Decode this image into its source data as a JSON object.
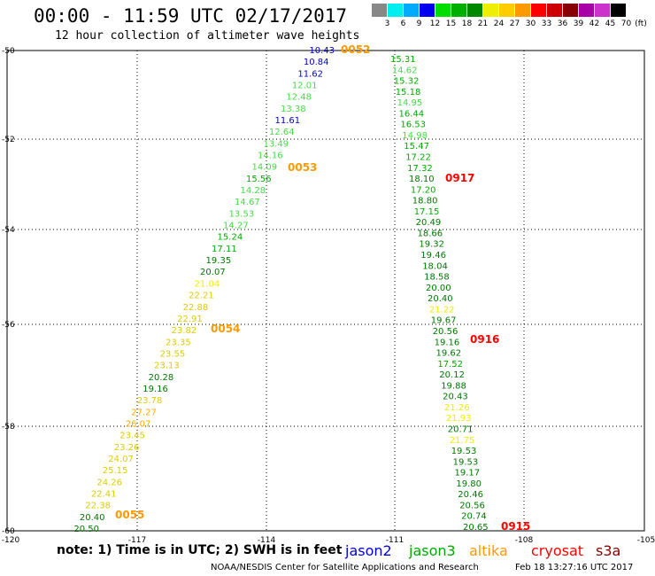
{
  "title": "00:00 - 11:59 UTC 02/17/2017",
  "subtitle": "12 hour collection of altimeter wave heights",
  "color_scale": {
    "unit": "(ft)",
    "labels": [
      "3",
      "6",
      "9",
      "12",
      "15",
      "18",
      "21",
      "24",
      "27",
      "30",
      "33",
      "36",
      "39",
      "42",
      "45",
      "70"
    ],
    "colors": [
      "#888888",
      "#00eeee",
      "#00aaff",
      "#0000ee",
      "#00dd00",
      "#00b000",
      "#008800",
      "#eeee00",
      "#ffcc00",
      "#ff9900",
      "#ff0000",
      "#cc0000",
      "#880000",
      "#aa00aa",
      "#cc33cc",
      "#000000"
    ]
  },
  "axes": {
    "x_ticks": [
      "-120",
      "-117",
      "-114",
      "-111",
      "-108",
      "-105"
    ],
    "y_ticks": [
      "-50",
      "-52",
      "-54",
      "-56",
      "-58",
      "-60"
    ]
  },
  "passes": [
    {
      "label": "0052",
      "color": "#ff9900"
    },
    {
      "label": "0053",
      "color": "#ff9900"
    },
    {
      "label": "0054",
      "color": "#ff9900"
    },
    {
      "label": "0055",
      "color": "#ff9900"
    },
    {
      "label": "0917",
      "color": "#ff0000"
    },
    {
      "label": "0916",
      "color": "#ff0000"
    },
    {
      "label": "0915",
      "color": "#ff0000"
    }
  ],
  "track_west": [
    {
      "v": "10.43",
      "c": "#0000cc"
    },
    {
      "v": "10.84",
      "c": "#0000cc"
    },
    {
      "v": "11.62",
      "c": "#0000cc"
    },
    {
      "v": "12.01",
      "c": "#44dd44"
    },
    {
      "v": "12.48",
      "c": "#44dd44"
    },
    {
      "v": "13.38",
      "c": "#44dd44"
    },
    {
      "v": "11.61",
      "c": "#0000cc"
    },
    {
      "v": "12.64",
      "c": "#44dd44"
    },
    {
      "v": "13.49",
      "c": "#44dd44"
    },
    {
      "v": "14.16",
      "c": "#44dd44"
    },
    {
      "v": "14.09",
      "c": "#44dd44"
    },
    {
      "v": "15.56",
      "c": "#00aa00"
    },
    {
      "v": "14.28",
      "c": "#44dd44"
    },
    {
      "v": "14.67",
      "c": "#44dd44"
    },
    {
      "v": "13.53",
      "c": "#44dd44"
    },
    {
      "v": "14.27",
      "c": "#44dd44"
    },
    {
      "v": "15.24",
      "c": "#00aa00"
    },
    {
      "v": "17.11",
      "c": "#00aa00"
    },
    {
      "v": "19.35",
      "c": "#007700"
    },
    {
      "v": "20.07",
      "c": "#007700"
    },
    {
      "v": "21.04",
      "c": "#eeee00"
    },
    {
      "v": "22.21",
      "c": "#ddcc00"
    },
    {
      "v": "22.88",
      "c": "#ddcc00"
    },
    {
      "v": "22.91",
      "c": "#ddcc00"
    },
    {
      "v": "23.82",
      "c": "#ddcc00"
    },
    {
      "v": "23.35",
      "c": "#ddcc00"
    },
    {
      "v": "23.55",
      "c": "#ddcc00"
    },
    {
      "v": "23.13",
      "c": "#ddcc00"
    },
    {
      "v": "20.28",
      "c": "#007700"
    },
    {
      "v": "19.16",
      "c": "#007700"
    },
    {
      "v": "23.78",
      "c": "#ddcc00"
    },
    {
      "v": "27.27",
      "c": "#ffaa00"
    },
    {
      "v": "26.07",
      "c": "#ffaa00"
    },
    {
      "v": "23.45",
      "c": "#ddcc00"
    },
    {
      "v": "23.26",
      "c": "#ddcc00"
    },
    {
      "v": "24.07",
      "c": "#ddcc00"
    },
    {
      "v": "25.15",
      "c": "#ddcc00"
    },
    {
      "v": "24.26",
      "c": "#ddcc00"
    },
    {
      "v": "22.41",
      "c": "#ddcc00"
    },
    {
      "v": "22.38",
      "c": "#ddcc00"
    },
    {
      "v": "20.40",
      "c": "#007700"
    },
    {
      "v": "20.50",
      "c": "#007700"
    }
  ],
  "track_east": [
    {
      "v": "15.31",
      "c": "#00aa00"
    },
    {
      "v": "14.62",
      "c": "#44dd44"
    },
    {
      "v": "15.32",
      "c": "#00aa00"
    },
    {
      "v": "15.18",
      "c": "#00aa00"
    },
    {
      "v": "14.95",
      "c": "#44dd44"
    },
    {
      "v": "16.44",
      "c": "#00aa00"
    },
    {
      "v": "16.53",
      "c": "#00aa00"
    },
    {
      "v": "14.98",
      "c": "#44dd44"
    },
    {
      "v": "15.47",
      "c": "#00aa00"
    },
    {
      "v": "17.22",
      "c": "#00aa00"
    },
    {
      "v": "17.32",
      "c": "#00aa00"
    },
    {
      "v": "18.10",
      "c": "#007700"
    },
    {
      "v": "17.20",
      "c": "#00aa00"
    },
    {
      "v": "18.80",
      "c": "#007700"
    },
    {
      "v": "17.15",
      "c": "#00aa00"
    },
    {
      "v": "20.49",
      "c": "#007700"
    },
    {
      "v": "18.66",
      "c": "#007700"
    },
    {
      "v": "19.32",
      "c": "#007700"
    },
    {
      "v": "19.46",
      "c": "#007700"
    },
    {
      "v": "18.04",
      "c": "#007700"
    },
    {
      "v": "18.58",
      "c": "#007700"
    },
    {
      "v": "20.00",
      "c": "#007700"
    },
    {
      "v": "20.40",
      "c": "#007700"
    },
    {
      "v": "21.22",
      "c": "#eeee00"
    },
    {
      "v": "19.67",
      "c": "#007700"
    },
    {
      "v": "20.56",
      "c": "#007700"
    },
    {
      "v": "19.16",
      "c": "#007700"
    },
    {
      "v": "19.62",
      "c": "#007700"
    },
    {
      "v": "17.52",
      "c": "#00aa00"
    },
    {
      "v": "20.12",
      "c": "#007700"
    },
    {
      "v": "19.88",
      "c": "#007700"
    },
    {
      "v": "20.43",
      "c": "#007700"
    },
    {
      "v": "21.26",
      "c": "#eeee00"
    },
    {
      "v": "21.93",
      "c": "#eeee00"
    },
    {
      "v": "20.71",
      "c": "#007700"
    },
    {
      "v": "21.75",
      "c": "#eeee00"
    },
    {
      "v": "19.53",
      "c": "#007700"
    },
    {
      "v": "19.53",
      "c": "#007700"
    },
    {
      "v": "19.17",
      "c": "#007700"
    },
    {
      "v": "19.80",
      "c": "#007700"
    },
    {
      "v": "20.46",
      "c": "#007700"
    },
    {
      "v": "20.56",
      "c": "#007700"
    },
    {
      "v": "20.74",
      "c": "#007700"
    },
    {
      "v": "20.65",
      "c": "#007700"
    }
  ],
  "note": "note: 1) Time is in UTC; 2) SWH is in feet",
  "missions": [
    {
      "name": "jason2",
      "color": "#0000dd"
    },
    {
      "name": "jason3",
      "color": "#00aa00"
    },
    {
      "name": "altika",
      "color": "#ff9900"
    },
    {
      "name": "cryosat",
      "color": "#ff0000"
    },
    {
      "name": "s3a",
      "color": "#880000"
    }
  ],
  "credit": "NOAA/NESDIS Center for Satellite Applications and Research",
  "stamp": "Feb 18 13:27:16 UTC 2017"
}
